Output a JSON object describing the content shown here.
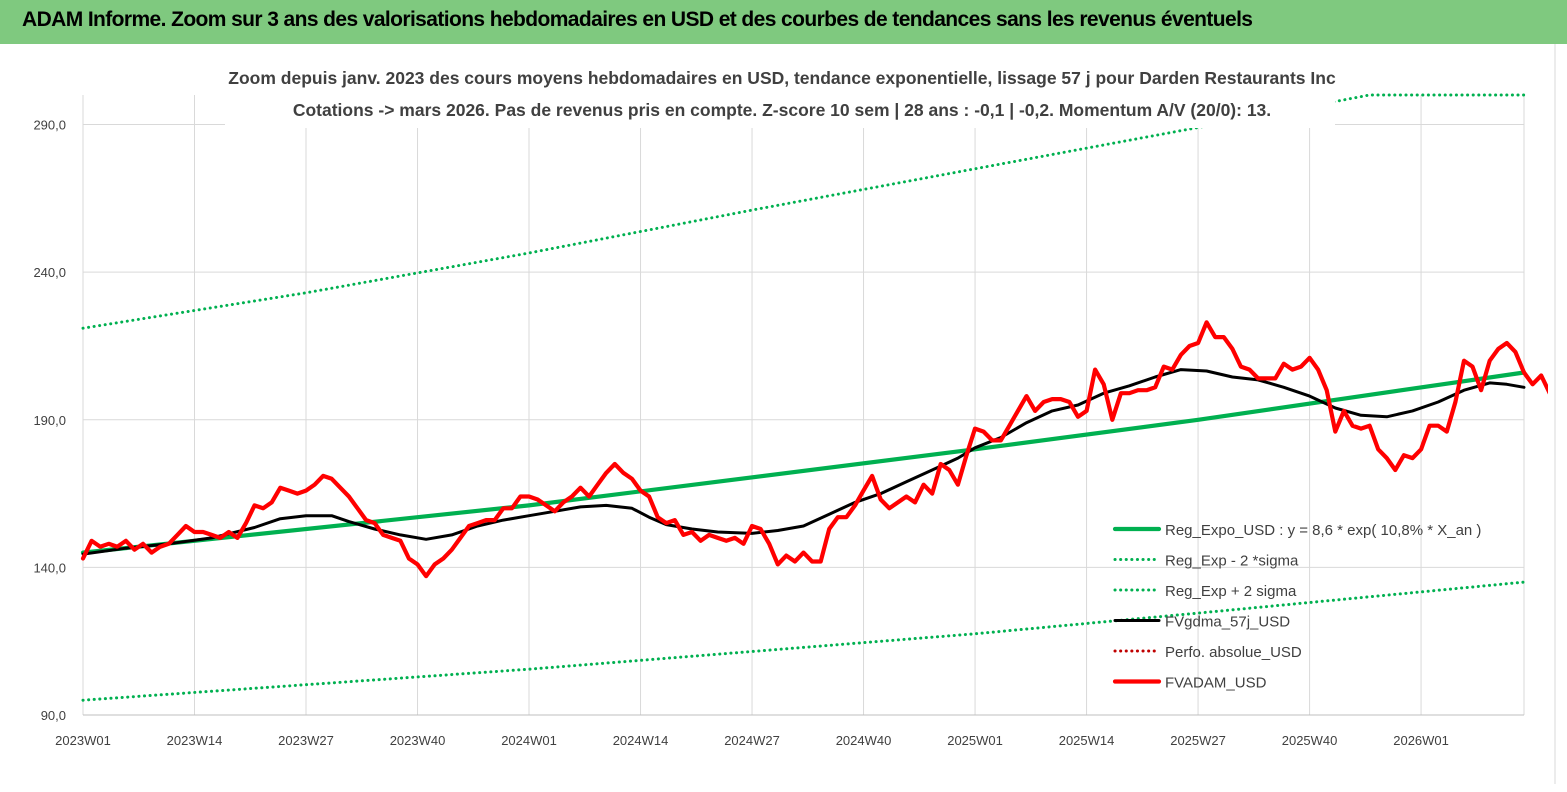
{
  "banner": {
    "title": "ADAM Informe. Zoom sur 3 ans des valorisations hebdomadaires en USD et des courbes de tendances sans les revenus éventuels"
  },
  "chart_data": {
    "type": "line",
    "title": "Zoom depuis janv. 2023 des cours moyens hebdomadaires en USD, tendance exponentielle, lissage 57 j pour Darden Restaurants Inc",
    "subtitle": "Cotations -> mars 2026. Pas de revenus pris en compte. Z-score 10 sem | 28 ans : -0,1 | -0,2. Momentum A/V (20/0): 13.",
    "xlabel": "",
    "ylabel": "",
    "ylim": [
      90,
      300
    ],
    "y_ticks": [
      90,
      140,
      190,
      240,
      290
    ],
    "y_tick_labels": [
      "90,0",
      "140,0",
      "190,0",
      "240,0",
      "290,0"
    ],
    "x_range_weeks": [
      0,
      168
    ],
    "x_ticks": [
      {
        "week": 0,
        "label": "2023W01"
      },
      {
        "week": 13,
        "label": "2023W14"
      },
      {
        "week": 26,
        "label": "2023W27"
      },
      {
        "week": 39,
        "label": "2023W40"
      },
      {
        "week": 52,
        "label": "2024W01"
      },
      {
        "week": 65,
        "label": "2024W14"
      },
      {
        "week": 78,
        "label": "2024W27"
      },
      {
        "week": 91,
        "label": "2024W40"
      },
      {
        "week": 104,
        "label": "2025W01"
      },
      {
        "week": 117,
        "label": "2025W14"
      },
      {
        "week": 130,
        "label": "2025W27"
      },
      {
        "week": 143,
        "label": "2025W40"
      },
      {
        "week": 156,
        "label": "2026W01"
      }
    ],
    "grid": true,
    "legend_position": "bottom-right",
    "series": [
      {
        "name": "Reg_Expo_USD : y = 8,6 * exp( 10,8% *  X_an )",
        "color": "#00b050",
        "style": "solid-thick",
        "points": [
          [
            0,
            145
          ],
          [
            52,
            161
          ],
          [
            104,
            180
          ],
          [
            130,
            190
          ],
          [
            168,
            206
          ]
        ]
      },
      {
        "name": "Reg_Exp - 2 *sigma",
        "color": "#00b050",
        "style": "dotted",
        "points": [
          [
            0,
            95
          ],
          [
            52,
            105.5
          ],
          [
            104,
            117.5
          ],
          [
            130,
            124.5
          ],
          [
            168,
            135
          ]
        ]
      },
      {
        "name": "Reg_Exp + 2 sigma",
        "color": "#00b050",
        "style": "dotted",
        "points": [
          [
            0,
            221
          ],
          [
            26,
            233
          ],
          [
            52,
            246.5
          ],
          [
            78,
            261
          ],
          [
            104,
            275
          ],
          [
            130,
            289
          ],
          [
            150,
            300
          ],
          [
            168,
            300
          ]
        ]
      },
      {
        "name": "FVgdma_57j_USD",
        "color": "#000000",
        "style": "solid",
        "points": [
          [
            0,
            144.5
          ],
          [
            5,
            146.5
          ],
          [
            10,
            148
          ],
          [
            15,
            150
          ],
          [
            20,
            153.5
          ],
          [
            23,
            156.5
          ],
          [
            26,
            157.5
          ],
          [
            29,
            157.5
          ],
          [
            31,
            155.5
          ],
          [
            34,
            153
          ],
          [
            37,
            151
          ],
          [
            40,
            149.5
          ],
          [
            43,
            151
          ],
          [
            46,
            154
          ],
          [
            49,
            156
          ],
          [
            52,
            157.5
          ],
          [
            55,
            159
          ],
          [
            58,
            160.5
          ],
          [
            61,
            161
          ],
          [
            64,
            160
          ],
          [
            66,
            157
          ],
          [
            68,
            154.5
          ],
          [
            71,
            153
          ],
          [
            74,
            152
          ],
          [
            78,
            151.5
          ],
          [
            81,
            152.5
          ],
          [
            84,
            154
          ],
          [
            87,
            158
          ],
          [
            90,
            162
          ],
          [
            93,
            165
          ],
          [
            96,
            169
          ],
          [
            99,
            173
          ],
          [
            102,
            177
          ],
          [
            104,
            180.5
          ],
          [
            107,
            184
          ],
          [
            110,
            189
          ],
          [
            113,
            193
          ],
          [
            116,
            195
          ],
          [
            119,
            199
          ],
          [
            122,
            201.5
          ],
          [
            125,
            204.5
          ],
          [
            128,
            207
          ],
          [
            131,
            206.5
          ],
          [
            134,
            204.5
          ],
          [
            137,
            203.5
          ],
          [
            140,
            201
          ],
          [
            143,
            198
          ],
          [
            146,
            194
          ],
          [
            149,
            191.5
          ],
          [
            152,
            191
          ],
          [
            155,
            193
          ],
          [
            158,
            196
          ],
          [
            161,
            200
          ],
          [
            164,
            202.5
          ],
          [
            166,
            202
          ],
          [
            168,
            201
          ]
        ]
      },
      {
        "name": "Perfo. absolue_USD",
        "color": "#c00000",
        "style": "dotted",
        "points": []
      },
      {
        "name": "FVADAM_USD",
        "color": "#ff0000",
        "style": "solid-thick",
        "points": [
          [
            0,
            143
          ],
          [
            1,
            149
          ],
          [
            2,
            147
          ],
          [
            3,
            148
          ],
          [
            4,
            147
          ],
          [
            5,
            149
          ],
          [
            6,
            146
          ],
          [
            7,
            148
          ],
          [
            8,
            145
          ],
          [
            9,
            147
          ],
          [
            10,
            148
          ],
          [
            11,
            151
          ],
          [
            12,
            154
          ],
          [
            13,
            152
          ],
          [
            14,
            152
          ],
          [
            15,
            151
          ],
          [
            16,
            150
          ],
          [
            17,
            152
          ],
          [
            18,
            150
          ],
          [
            19,
            155
          ],
          [
            20,
            161
          ],
          [
            21,
            160
          ],
          [
            22,
            162
          ],
          [
            23,
            167
          ],
          [
            24,
            166
          ],
          [
            25,
            165
          ],
          [
            26,
            166
          ],
          [
            27,
            168
          ],
          [
            28,
            171
          ],
          [
            29,
            170
          ],
          [
            30,
            167
          ],
          [
            31,
            164
          ],
          [
            32,
            160
          ],
          [
            33,
            156
          ],
          [
            34,
            155
          ],
          [
            35,
            151
          ],
          [
            36,
            150
          ],
          [
            37,
            149
          ],
          [
            38,
            143
          ],
          [
            39,
            141
          ],
          [
            40,
            137
          ],
          [
            41,
            141
          ],
          [
            42,
            143
          ],
          [
            43,
            146
          ],
          [
            44,
            150
          ],
          [
            45,
            154
          ],
          [
            46,
            155
          ],
          [
            47,
            156
          ],
          [
            48,
            156
          ],
          [
            49,
            160
          ],
          [
            50,
            160
          ],
          [
            51,
            164
          ],
          [
            52,
            164
          ],
          [
            53,
            163
          ],
          [
            54,
            161
          ],
          [
            55,
            159
          ],
          [
            56,
            162
          ],
          [
            57,
            164
          ],
          [
            58,
            167
          ],
          [
            59,
            164
          ],
          [
            60,
            168
          ],
          [
            61,
            172
          ],
          [
            62,
            175
          ],
          [
            63,
            172
          ],
          [
            64,
            170
          ],
          [
            65,
            166
          ],
          [
            66,
            164
          ],
          [
            67,
            157
          ],
          [
            68,
            155
          ],
          [
            69,
            156
          ],
          [
            70,
            151
          ],
          [
            71,
            152
          ],
          [
            72,
            149
          ],
          [
            73,
            151
          ],
          [
            74,
            150
          ],
          [
            75,
            149
          ],
          [
            76,
            150
          ],
          [
            77,
            148
          ],
          [
            78,
            154
          ],
          [
            79,
            153
          ],
          [
            80,
            148
          ],
          [
            81,
            141
          ],
          [
            82,
            144
          ],
          [
            83,
            142
          ],
          [
            84,
            145
          ],
          [
            85,
            142
          ],
          [
            86,
            142
          ],
          [
            87,
            153
          ],
          [
            88,
            157
          ],
          [
            89,
            157
          ],
          [
            90,
            161
          ],
          [
            91,
            166
          ],
          [
            92,
            171
          ],
          [
            93,
            163
          ],
          [
            94,
            160
          ],
          [
            95,
            162
          ],
          [
            96,
            164
          ],
          [
            97,
            162
          ],
          [
            98,
            168
          ],
          [
            99,
            165
          ],
          [
            100,
            175
          ],
          [
            101,
            173
          ],
          [
            102,
            168
          ],
          [
            103,
            178
          ],
          [
            104,
            187
          ],
          [
            105,
            186
          ],
          [
            106,
            183
          ],
          [
            107,
            183
          ],
          [
            108,
            188
          ],
          [
            109,
            193
          ],
          [
            110,
            198
          ],
          [
            111,
            193
          ],
          [
            112,
            196
          ],
          [
            113,
            197
          ],
          [
            114,
            197
          ],
          [
            115,
            196
          ],
          [
            116,
            191
          ],
          [
            117,
            193
          ],
          [
            118,
            207
          ],
          [
            119,
            202
          ],
          [
            120,
            190
          ],
          [
            121,
            199
          ],
          [
            122,
            199
          ],
          [
            123,
            200
          ],
          [
            124,
            200
          ],
          [
            125,
            201
          ],
          [
            126,
            208
          ],
          [
            127,
            207
          ],
          [
            128,
            212
          ],
          [
            129,
            215
          ],
          [
            130,
            216
          ],
          [
            131,
            223
          ],
          [
            132,
            218
          ],
          [
            133,
            218
          ],
          [
            134,
            214
          ],
          [
            135,
            208
          ],
          [
            136,
            207
          ],
          [
            137,
            204
          ],
          [
            138,
            204
          ],
          [
            139,
            204
          ],
          [
            140,
            209
          ],
          [
            141,
            207
          ],
          [
            142,
            208
          ],
          [
            143,
            211
          ],
          [
            144,
            207
          ],
          [
            145,
            200
          ],
          [
            146,
            186
          ],
          [
            147,
            193
          ],
          [
            148,
            188
          ],
          [
            149,
            187
          ],
          [
            150,
            188
          ],
          [
            151,
            180
          ],
          [
            152,
            177
          ],
          [
            153,
            173
          ],
          [
            154,
            178
          ],
          [
            155,
            177
          ],
          [
            156,
            180
          ],
          [
            157,
            188
          ],
          [
            158,
            188
          ],
          [
            159,
            186
          ],
          [
            160,
            196
          ],
          [
            161,
            210
          ],
          [
            162,
            208
          ],
          [
            163,
            200
          ],
          [
            164,
            210
          ],
          [
            165,
            214
          ],
          [
            166,
            216
          ],
          [
            167,
            213
          ],
          [
            168,
            206
          ],
          [
            169,
            202
          ],
          [
            170,
            205
          ],
          [
            171,
            199
          ]
        ]
      }
    ]
  }
}
